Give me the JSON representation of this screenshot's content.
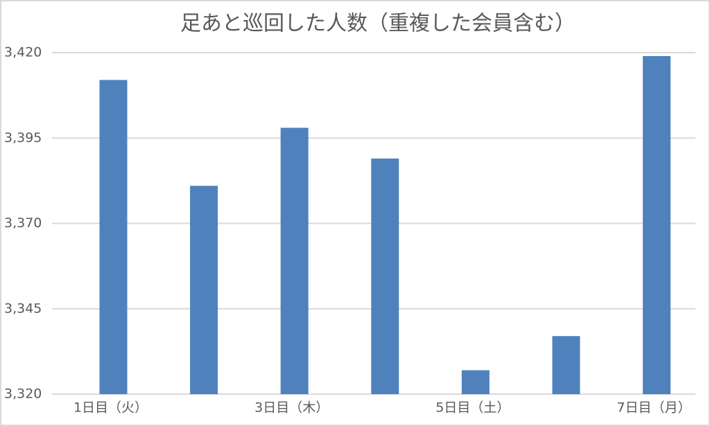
{
  "chart_data": {
    "type": "bar",
    "title": "足あと巡回した人数（重複した会員含む）",
    "categories": [
      "1日目（火）",
      null,
      "3日目（木）",
      null,
      "5日目（土）",
      null,
      "7日目（月）"
    ],
    "values": [
      3412,
      3381,
      3398,
      3389,
      3327,
      3337,
      3419
    ],
    "color": "#4f81bd",
    "ylim": [
      3320,
      3420
    ],
    "yticks": [
      {
        "value": 3320,
        "label": "3,320"
      },
      {
        "value": 3345,
        "label": "3,345"
      },
      {
        "value": 3370,
        "label": "3,370"
      },
      {
        "value": 3395,
        "label": "3,395"
      },
      {
        "value": 3420,
        "label": "3,420"
      }
    ],
    "grid": true
  }
}
